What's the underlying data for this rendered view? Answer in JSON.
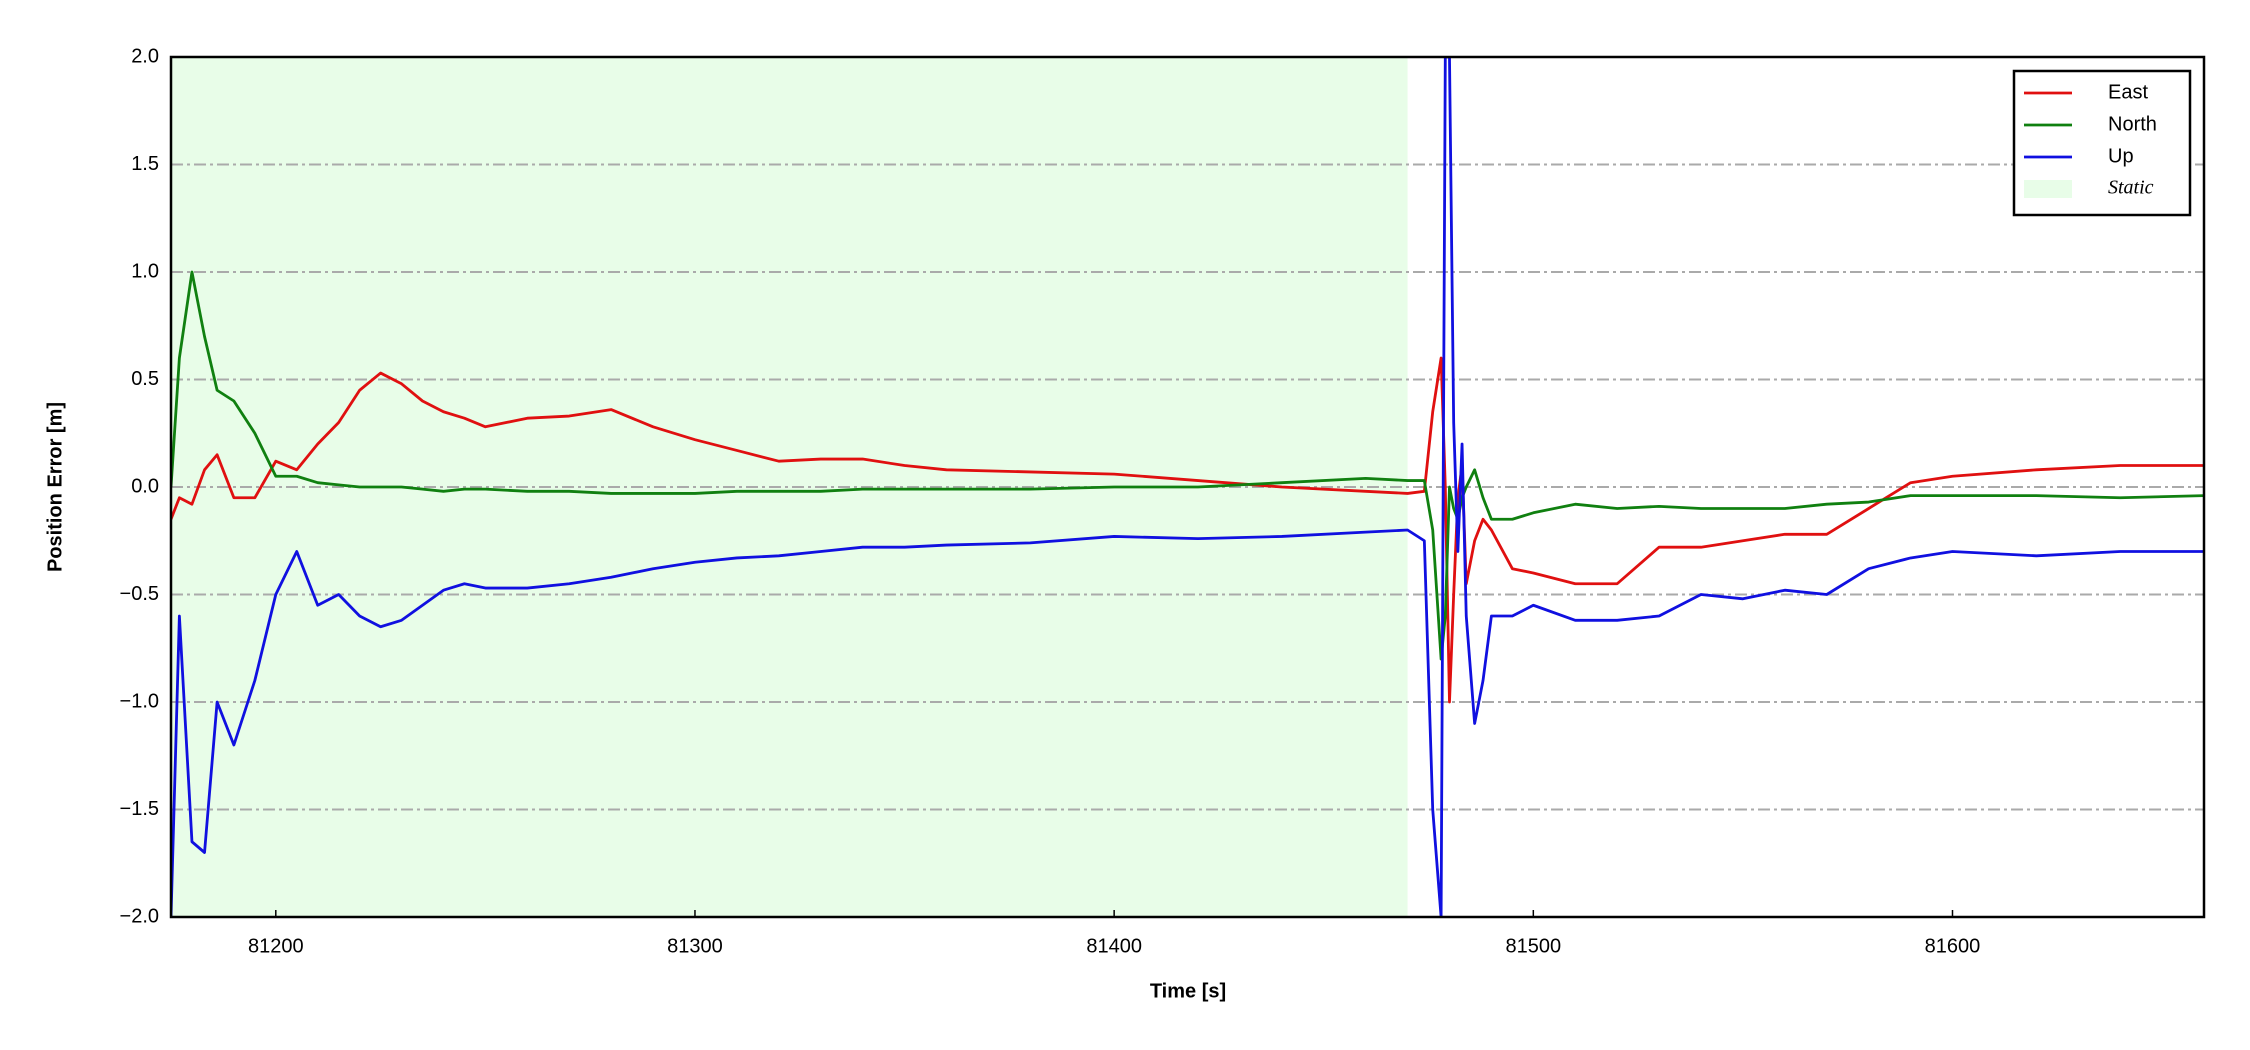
{
  "chart_data": {
    "type": "line",
    "xlabel": "Time [s]",
    "ylabel": "Position Error [m]",
    "x": [
      81175,
      81177,
      81180,
      81183,
      81186,
      81190,
      81195,
      81200,
      81205,
      81210,
      81215,
      81220,
      81225,
      81230,
      81235,
      81240,
      81245,
      81250,
      81260,
      81270,
      81280,
      81290,
      81300,
      81310,
      81320,
      81330,
      81340,
      81350,
      81360,
      81380,
      81400,
      81420,
      81440,
      81460,
      81470,
      81474,
      81476,
      81478,
      81479,
      81480,
      81481,
      81482,
      81483,
      81484,
      81486,
      81488,
      81490,
      81495,
      81500,
      81510,
      81520,
      81530,
      81540,
      81550,
      81560,
      81570,
      81580,
      81590,
      81600,
      81620,
      81640,
      81660
    ],
    "series": [
      {
        "name": "East",
        "color": "#e01010",
        "values": [
          -0.15,
          -0.05,
          -0.08,
          0.08,
          0.15,
          -0.05,
          -0.05,
          0.12,
          0.08,
          0.2,
          0.3,
          0.45,
          0.53,
          0.48,
          0.4,
          0.35,
          0.32,
          0.28,
          0.32,
          0.33,
          0.36,
          0.28,
          0.22,
          0.17,
          0.12,
          0.13,
          0.13,
          0.1,
          0.08,
          0.07,
          0.06,
          0.03,
          0.0,
          -0.02,
          -0.03,
          -0.02,
          0.35,
          0.6,
          0.0,
          -1.0,
          -0.5,
          -0.05,
          0.1,
          -0.45,
          -0.25,
          -0.15,
          -0.2,
          -0.38,
          -0.4,
          -0.45,
          -0.45,
          -0.28,
          -0.28,
          -0.25,
          -0.22,
          -0.22,
          -0.1,
          0.02,
          0.05,
          0.08,
          0.1,
          0.1
        ]
      },
      {
        "name": "North",
        "color": "#108010",
        "values": [
          0.0,
          0.6,
          1.0,
          0.7,
          0.45,
          0.4,
          0.25,
          0.05,
          0.05,
          0.02,
          0.01,
          0.0,
          0.0,
          0.0,
          -0.01,
          -0.02,
          -0.01,
          -0.01,
          -0.02,
          -0.02,
          -0.03,
          -0.03,
          -0.03,
          -0.02,
          -0.02,
          -0.02,
          -0.01,
          -0.01,
          -0.01,
          -0.01,
          0.0,
          0.0,
          0.02,
          0.04,
          0.03,
          0.03,
          -0.2,
          -0.8,
          -0.6,
          0.0,
          -0.1,
          -0.15,
          -0.05,
          0.0,
          0.08,
          -0.05,
          -0.15,
          -0.15,
          -0.12,
          -0.08,
          -0.1,
          -0.09,
          -0.1,
          -0.1,
          -0.1,
          -0.08,
          -0.07,
          -0.04,
          -0.04,
          -0.04,
          -0.05,
          -0.04
        ]
      },
      {
        "name": "Up",
        "color": "#1010e0",
        "values": [
          -2.0,
          -0.6,
          -1.65,
          -1.7,
          -1.0,
          -1.2,
          -0.9,
          -0.5,
          -0.3,
          -0.55,
          -0.5,
          -0.6,
          -0.65,
          -0.62,
          -0.55,
          -0.48,
          -0.45,
          -0.47,
          -0.47,
          -0.45,
          -0.42,
          -0.38,
          -0.35,
          -0.33,
          -0.32,
          -0.3,
          -0.28,
          -0.28,
          -0.27,
          -0.26,
          -0.23,
          -0.24,
          -0.23,
          -0.21,
          -0.2,
          -0.25,
          -1.5,
          -2.0,
          2.0,
          2.0,
          0.3,
          -0.3,
          0.2,
          -0.6,
          -1.1,
          -0.9,
          -0.6,
          -0.6,
          -0.55,
          -0.62,
          -0.62,
          -0.6,
          -0.5,
          -0.52,
          -0.48,
          -0.5,
          -0.38,
          -0.33,
          -0.3,
          -0.32,
          -0.3,
          -0.3
        ]
      }
    ],
    "static_region": {
      "name": "Static",
      "xlim": [
        81175,
        81470
      ],
      "color": "#e8fde8"
    },
    "xlim": [
      81175,
      81660
    ],
    "ylim": [
      -2.0,
      2.0
    ],
    "xticks": [
      81200,
      81300,
      81400,
      81500,
      81600
    ],
    "yticks": [
      {
        "value": -2.0,
        "label": "−2.0"
      },
      {
        "value": -1.5,
        "label": "−1.5"
      },
      {
        "value": -1.0,
        "label": "−1.0"
      },
      {
        "value": -0.5,
        "label": "−0.5"
      },
      {
        "value": 0.0,
        "label": "0.0"
      },
      {
        "value": 0.5,
        "label": "0.5"
      },
      {
        "value": 1.0,
        "label": "1.0"
      },
      {
        "value": 1.5,
        "label": "1.5"
      },
      {
        "value": 2.0,
        "label": "2.0"
      }
    ],
    "grid": true,
    "legend": "upper right"
  }
}
